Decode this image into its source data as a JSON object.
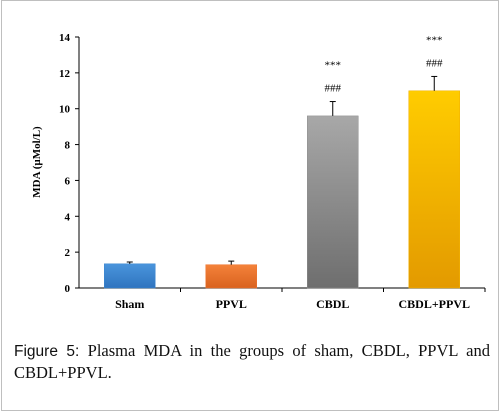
{
  "chart_data": {
    "type": "bar",
    "categories": [
      "Sham",
      "PPVL",
      "CBDL",
      "CBDL+PPVL"
    ],
    "values": [
      1.35,
      1.3,
      9.6,
      11.0
    ],
    "errors": [
      0.1,
      0.2,
      0.8,
      0.8
    ],
    "annotations": [
      [
        "",
        ""
      ],
      [
        "",
        ""
      ],
      [
        "***",
        "###"
      ],
      [
        "***",
        "###"
      ]
    ],
    "colors": [
      "#3b86cf",
      "#ed7530",
      "#8e8e8e",
      "#f2b100"
    ],
    "title": "",
    "xlabel": "",
    "ylabel": "MDA (µMol/L)",
    "ylim": [
      0,
      14
    ],
    "yticks": [
      0,
      2,
      4,
      6,
      8,
      10,
      12,
      14
    ],
    "grid": false
  },
  "caption": {
    "label": "Figure 5:",
    "text": " Plasma MDA in the groups of sham, CBDL, PPVL and CBDL+PPVL."
  }
}
